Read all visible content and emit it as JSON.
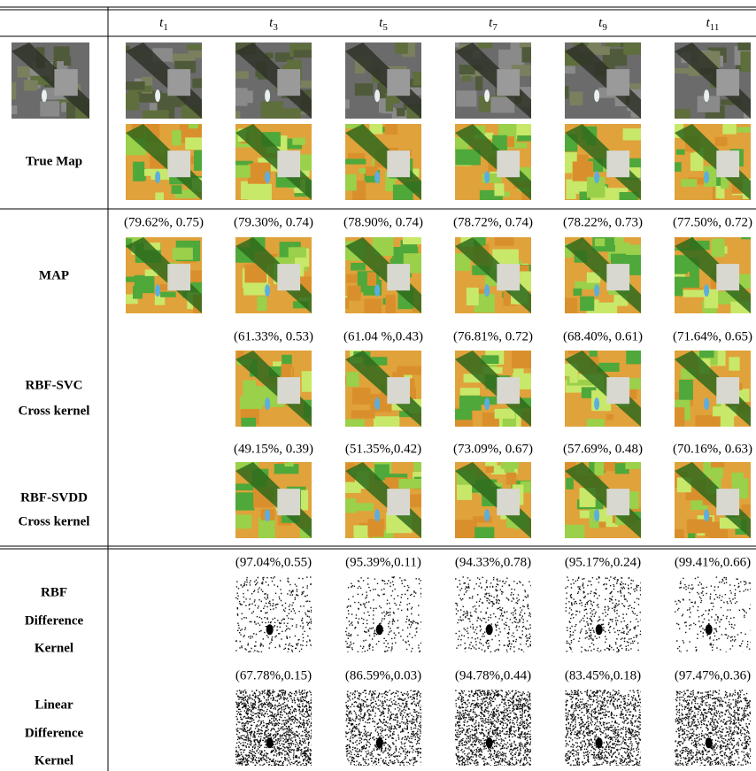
{
  "header": {
    "columns": [
      {
        "base": "t",
        "sub": "1"
      },
      {
        "base": "t",
        "sub": "3"
      },
      {
        "base": "t",
        "sub": "5"
      },
      {
        "base": "t",
        "sub": "7"
      },
      {
        "base": "t",
        "sub": "9"
      },
      {
        "base": "t",
        "sub": "11"
      }
    ]
  },
  "true_map": {
    "label": "True Map"
  },
  "rows": [
    {
      "label_lines": [
        "MAP"
      ],
      "scores": [
        "(79.62%, 0.75)",
        "(79.30%, 0.74)",
        "(78.90%, 0.74)",
        "(78.72%, 0.74)",
        "(78.22%, 0.73)",
        "(77.50%, 0.72)"
      ]
    },
    {
      "label_lines": [
        "RBF-SVC",
        "Cross kernel"
      ],
      "scores": [
        "(61.33%, 0.53)",
        "(61.04 %,0.43)",
        "(76.81%, 0.72)",
        "(68.40%, 0.61)",
        "(71.64%, 0.65)"
      ]
    },
    {
      "label_lines": [
        "RBF-SVDD",
        "Cross kernel"
      ],
      "scores": [
        "(49.15%, 0.39)",
        "(51.35%,0.42)",
        "(73.09%, 0.67)",
        "(57.69%, 0.48)",
        "(70.16%, 0.63)"
      ]
    },
    {
      "label_lines": [
        "RBF",
        "Difference",
        "Kernel"
      ],
      "scores": [
        "(97.04%,0.55)",
        "(95.39%,0.11)",
        "(94.33%,0.78)",
        "(95.17%,0.24)",
        "(99.41%,0.66)"
      ]
    },
    {
      "label_lines": [
        "Linear",
        "Difference",
        "Kernel"
      ],
      "scores": [
        "(67.78%,0.15)",
        "(86.59%,0.03)",
        "(94.78%,0.44)",
        "(83.45%,0.18)",
        "(97.47%,0.36)"
      ]
    }
  ]
}
